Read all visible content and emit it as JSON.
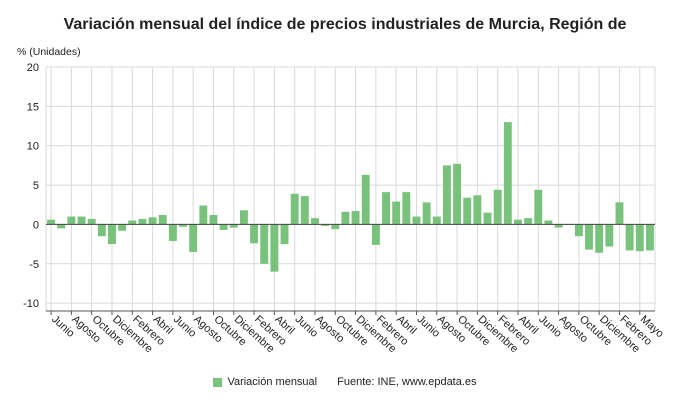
{
  "chart_data": {
    "type": "bar",
    "title": "Variación mensual del índice de precios industriales de Murcia, Región de",
    "ylabel": "% (Unidades)",
    "ylim": [
      -11,
      20
    ],
    "yticks": [
      20,
      15,
      10,
      5,
      0,
      -5,
      -10
    ],
    "grid": true,
    "legend_position": "bottom",
    "source": "Fuente: INE, www.epdata.es",
    "colors": {
      "bar": "#79c27c",
      "grid": "#d9d9d9",
      "axis": "#555555"
    },
    "x_tick_labels": [
      "Junio",
      "Agosto",
      "Octubre",
      "Diciembre",
      "Febrero",
      "Abril",
      "Junio",
      "Agosto",
      "Octubre",
      "Diciembre",
      "Febrero",
      "Abril",
      "Junio",
      "Agosto",
      "Octubre",
      "Diciembre",
      "Febrero",
      "Abril",
      "Junio",
      "Agosto",
      "Octubre",
      "Diciembre",
      "Febrero",
      "Abril",
      "Junio",
      "Agosto",
      "Octubre",
      "Diciembre",
      "Febrero",
      "Mayo"
    ],
    "series": [
      {
        "name": "Variación mensual",
        "values": [
          0.6,
          -0.5,
          1.0,
          1.0,
          0.7,
          -1.5,
          -2.5,
          -0.8,
          0.5,
          0.7,
          0.9,
          1.2,
          -2.1,
          -0.3,
          -3.5,
          2.4,
          1.2,
          -0.7,
          -0.4,
          1.8,
          -2.4,
          -5.0,
          -6.0,
          -2.5,
          3.9,
          3.6,
          0.8,
          -0.2,
          -0.6,
          1.6,
          1.7,
          6.3,
          -2.6,
          4.1,
          2.9,
          4.1,
          1.0,
          2.8,
          1.0,
          7.5,
          7.7,
          3.4,
          3.7,
          1.5,
          4.4,
          13.0,
          0.6,
          0.8,
          4.4,
          0.5,
          -0.4,
          0.0,
          -1.5,
          -3.2,
          -3.6,
          -2.8,
          2.8,
          -3.3,
          -3.4,
          -3.3
        ]
      }
    ]
  }
}
